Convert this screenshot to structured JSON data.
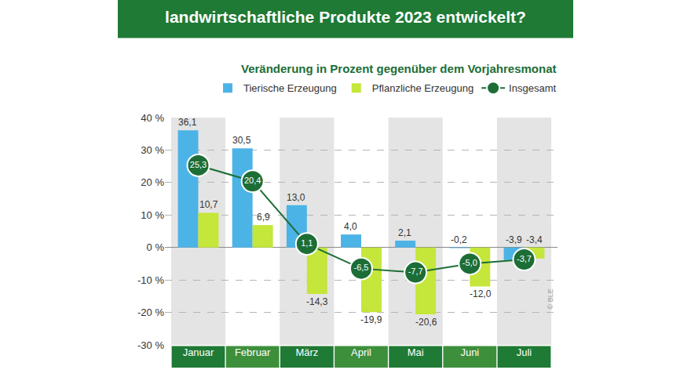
{
  "chart_data": {
    "type": "bar",
    "title": "landwirtschaftliche Produkte 2023 entwickelt?",
    "subtitle": "Veränderung in Prozent gegenüber dem Vorjahresmonat",
    "categories": [
      "Januar",
      "Februar",
      "März",
      "April",
      "Mai",
      "Juni",
      "Juli"
    ],
    "series": [
      {
        "name": "Tierische Erzeugung",
        "type": "bar",
        "color": "#4cb3e6",
        "values": [
          36.1,
          30.5,
          13.0,
          4.0,
          2.1,
          -0.2,
          -3.9
        ],
        "value_labels": [
          "36,1",
          "30,5",
          "13,0",
          "4,0",
          "2,1",
          "-0,2",
          "-3,9"
        ]
      },
      {
        "name": "Pflanzliche Erzeugung",
        "type": "bar",
        "color": "#c5e63a",
        "values": [
          10.7,
          6.9,
          -14.3,
          -19.9,
          -20.6,
          -12.0,
          -3.4
        ],
        "value_labels": [
          "10,7",
          "6,9",
          "-14,3",
          "-19,9",
          "-20,6",
          "-12,0",
          "-3,4"
        ]
      },
      {
        "name": "Insgesamt",
        "type": "line",
        "color": "#1d6e36",
        "marker": "circle",
        "values": [
          25.3,
          20.4,
          1.1,
          -6.5,
          -7.7,
          -5.0,
          -3.7
        ],
        "value_labels": [
          "25,3",
          "20,4",
          "1,1",
          "-6,5",
          "-7,7",
          "-5,0",
          "-3,7"
        ]
      }
    ],
    "ylim": [
      -30,
      40
    ],
    "yticks": [
      {
        "value": -30,
        "label": "-30 %"
      },
      {
        "value": -20,
        "label": "-20 %"
      },
      {
        "value": -10,
        "label": "-10 %"
      },
      {
        "value": 0,
        "label": "0 %"
      },
      {
        "value": 10,
        "label": "10 %"
      },
      {
        "value": 20,
        "label": "20 %"
      },
      {
        "value": 30,
        "label": "30 %"
      },
      {
        "value": 40,
        "label": "40 %"
      }
    ],
    "grid": true,
    "legend": "top",
    "data_labels": true,
    "annotations": [
      "© BLE"
    ]
  }
}
